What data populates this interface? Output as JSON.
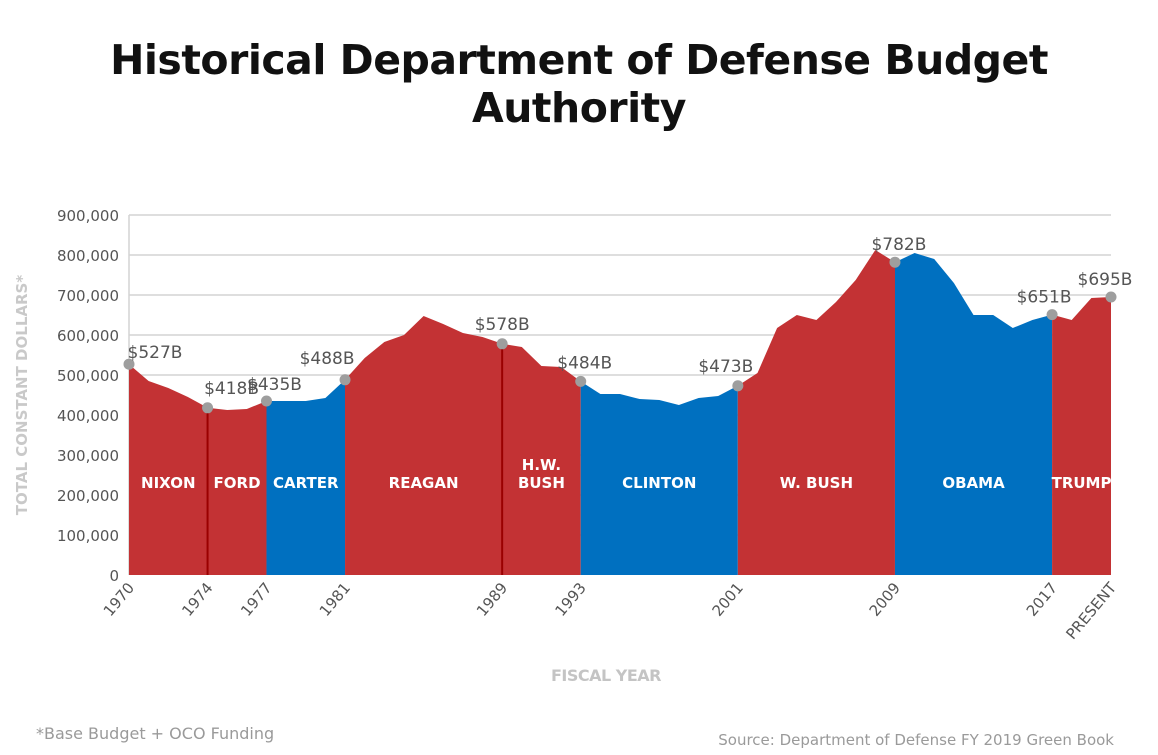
{
  "title": "Historical Department of Defense Budget Authority",
  "footnote": "*Base Budget + OCO Funding",
  "source": "Source: Department of Defense FY 2019 Green Book",
  "chart_data": {
    "type": "area",
    "title": "Historical Department of Defense Budget Authority",
    "xlabel": "FISCAL YEAR",
    "ylabel": "TOTAL CONSTANT DOLLARS*",
    "ylim": [
      0,
      900000
    ],
    "yticks": [
      0,
      100000,
      200000,
      300000,
      400000,
      500000,
      600000,
      700000,
      800000,
      900000
    ],
    "ytick_labels": [
      "0",
      "100,000",
      "200,000",
      "300,000",
      "400,000",
      "500,000",
      "600,000",
      "700,000",
      "800,000",
      "900,000"
    ],
    "grid": true,
    "party_colors": {
      "R": "#c33234",
      "D": "#0070c0"
    },
    "x": [
      1970,
      1971,
      1972,
      1973,
      1974,
      1975,
      1976,
      1977,
      1978,
      1979,
      1980,
      1981,
      1982,
      1983,
      1984,
      1985,
      1986,
      1987,
      1988,
      1989,
      1990,
      1991,
      1992,
      1993,
      1994,
      1995,
      1996,
      1997,
      1998,
      1999,
      2000,
      2001,
      2002,
      2003,
      2004,
      2005,
      2006,
      2007,
      2008,
      2009,
      2010,
      2011,
      2012,
      2013,
      2014,
      2015,
      2016,
      2017,
      2018,
      2019,
      2020
    ],
    "values": [
      527000,
      485000,
      467500,
      445000,
      418000,
      412500,
      415000,
      435000,
      435000,
      435000,
      442500,
      488000,
      542500,
      582500,
      600000,
      647500,
      627500,
      605000,
      595000,
      578000,
      570000,
      522500,
      520000,
      484000,
      452500,
      452500,
      440000,
      437500,
      425000,
      442500,
      447500,
      473000,
      505000,
      617500,
      650000,
      637500,
      682500,
      737500,
      812500,
      782000,
      805000,
      790000,
      730000,
      650000,
      650000,
      617500,
      637500,
      651000,
      637500,
      692500,
      695000
    ],
    "xtick_years": [
      1970,
      1974,
      1977,
      1981,
      1989,
      1993,
      2001,
      2009,
      2017,
      2020
    ],
    "xtick_labels": [
      "1970",
      "1974",
      "1977",
      "1981",
      "1989",
      "1993",
      "2001",
      "2009",
      "2017",
      "PRESENT"
    ],
    "eras": [
      {
        "name": "NIXON",
        "name2": "",
        "start": 1970,
        "end": 1974,
        "party": "R"
      },
      {
        "name": "FORD",
        "name2": "",
        "start": 1974,
        "end": 1977,
        "party": "R"
      },
      {
        "name": "CARTER",
        "name2": "",
        "start": 1977,
        "end": 1981,
        "party": "D"
      },
      {
        "name": "REAGAN",
        "name2": "",
        "start": 1981,
        "end": 1989,
        "party": "R"
      },
      {
        "name": "H.W.",
        "name2": "BUSH",
        "start": 1989,
        "end": 1993,
        "party": "R"
      },
      {
        "name": "CLINTON",
        "name2": "",
        "start": 1993,
        "end": 2001,
        "party": "D"
      },
      {
        "name": "W. BUSH",
        "name2": "",
        "start": 2001,
        "end": 2009,
        "party": "R"
      },
      {
        "name": "OBAMA",
        "name2": "",
        "start": 2009,
        "end": 2017,
        "party": "D"
      },
      {
        "name": "TRUMP",
        "name2": "",
        "start": 2017,
        "end": 2020,
        "party": "R"
      }
    ],
    "annotations": [
      {
        "year": 1970,
        "value": 527000,
        "label": "$527B"
      },
      {
        "year": 1974,
        "value": 418000,
        "label": "$418B"
      },
      {
        "year": 1977,
        "value": 435000,
        "label": "$435B"
      },
      {
        "year": 1981,
        "value": 488000,
        "label": "$488B"
      },
      {
        "year": 1989,
        "value": 578000,
        "label": "$578B"
      },
      {
        "year": 1993,
        "value": 484000,
        "label": "$484B"
      },
      {
        "year": 2001,
        "value": 473000,
        "label": "$473B"
      },
      {
        "year": 2009,
        "value": 782000,
        "label": "$782B"
      },
      {
        "year": 2017,
        "value": 651000,
        "label": "$651B"
      },
      {
        "year": 2020,
        "value": 695000,
        "label": "$695B"
      }
    ]
  }
}
